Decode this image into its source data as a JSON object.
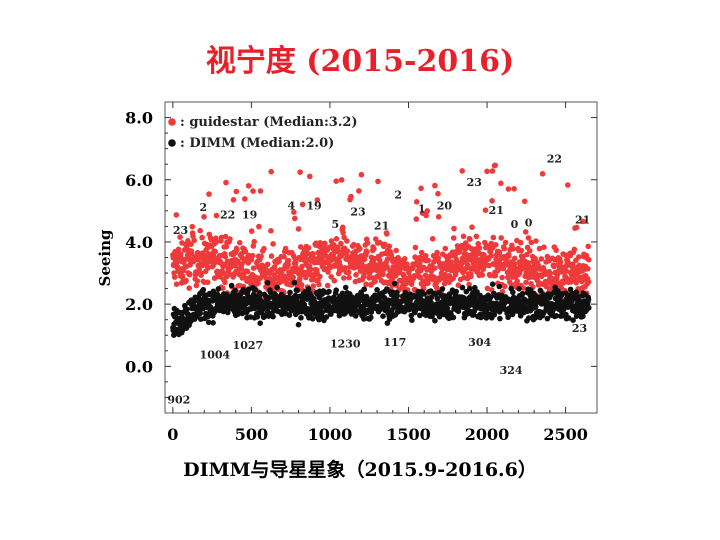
{
  "title": "视宁度 (2015-2016)",
  "caption": "DIMM与导星星象（2015.9-2016.6）",
  "chart_data": {
    "type": "scatter",
    "ylabel": "Seeing",
    "xlabel": "",
    "xlim": [
      -50,
      2700
    ],
    "ylim": [
      -1.5,
      8.5
    ],
    "xticks": [
      "0",
      "500",
      "1000",
      "1500",
      "2000",
      "2500"
    ],
    "yticks": [
      "0.0",
      "2.0",
      "4.0",
      "6.0",
      "8.0"
    ],
    "legend_position": "top-left",
    "grid": false,
    "series": [
      {
        "name": ": guidestar (Median:3.2)",
        "color": "#ee3a3a",
        "median": 3.2,
        "points": 2650
      },
      {
        "name": ": DIMM (Median:2.0)",
        "color": "#111111",
        "median": 2.0,
        "points": 2650
      }
    ],
    "annotations": [
      {
        "text": "23",
        "x": 0,
        "y": 4.25
      },
      {
        "text": "2",
        "x": 170,
        "y": 5.0
      },
      {
        "text": "22",
        "x": 300,
        "y": 4.75
      },
      {
        "text": "19",
        "x": 440,
        "y": 4.75
      },
      {
        "text": "4",
        "x": 730,
        "y": 5.05
      },
      {
        "text": "19",
        "x": 850,
        "y": 5.05
      },
      {
        "text": "5",
        "x": 1010,
        "y": 4.45
      },
      {
        "text": "23",
        "x": 1130,
        "y": 4.85
      },
      {
        "text": "21",
        "x": 1280,
        "y": 4.4
      },
      {
        "text": "2",
        "x": 1410,
        "y": 5.4
      },
      {
        "text": "1",
        "x": 1560,
        "y": 4.95
      },
      {
        "text": "20",
        "x": 1680,
        "y": 5.05
      },
      {
        "text": "23",
        "x": 1870,
        "y": 5.8
      },
      {
        "text": "21",
        "x": 2010,
        "y": 4.9
      },
      {
        "text": "0",
        "x": 2150,
        "y": 4.45
      },
      {
        "text": "0",
        "x": 2240,
        "y": 4.5
      },
      {
        "text": "22",
        "x": 2380,
        "y": 6.55
      },
      {
        "text": "21",
        "x": 2560,
        "y": 4.6
      },
      {
        "text": "1004",
        "x": 170,
        "y": 0.25
      },
      {
        "text": "1027",
        "x": 380,
        "y": 0.55
      },
      {
        "text": "1230",
        "x": 1000,
        "y": 0.6
      },
      {
        "text": "117",
        "x": 1340,
        "y": 0.65
      },
      {
        "text": "304",
        "x": 1880,
        "y": 0.65
      },
      {
        "text": "324",
        "x": 2080,
        "y": -0.25
      },
      {
        "text": "23",
        "x": 2540,
        "y": 1.1
      },
      {
        "text": "902",
        "x": -35,
        "y": -1.2
      }
    ]
  }
}
